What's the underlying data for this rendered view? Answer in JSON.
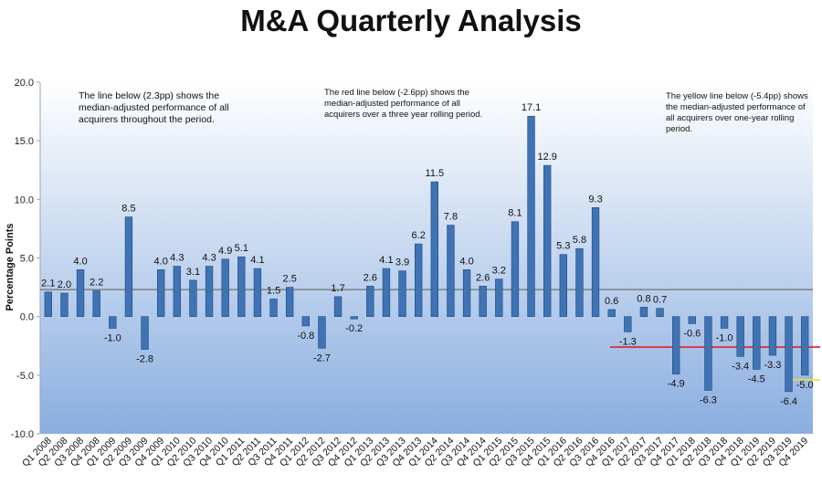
{
  "chart_data": {
    "type": "bar",
    "title": "M&A Quarterly Analysis",
    "xlabel": "",
    "ylabel": "Percentage Points",
    "ylim": [
      -10,
      20
    ],
    "yticks": [
      20.0,
      15.0,
      10.0,
      5.0,
      0.0,
      -5.0,
      -10.0
    ],
    "ytick_labels": [
      "20.0",
      "15.0",
      "10.0",
      "5.0",
      "0.0",
      "-5.0",
      "-10.0"
    ],
    "grid": false,
    "categories": [
      "Q1 2008",
      "Q2 2008",
      "Q3 2008",
      "Q4 2008",
      "Q1 2009",
      "Q2 2009",
      "Q3 2009",
      "Q4 2009",
      "Q1 2010",
      "Q2 2010",
      "Q3 2010",
      "Q4 2010",
      "Q1 2011",
      "Q2 2011",
      "Q3 2011",
      "Q4 2011",
      "Q1 2012",
      "Q2 2012",
      "Q3 2012",
      "Q4 2012",
      "Q1 2013",
      "Q2 2013",
      "Q3 2013",
      "Q4 2013",
      "Q1 2014",
      "Q2 2014",
      "Q3 2014",
      "Q4 2014",
      "Q1 2015",
      "Q2 2015",
      "Q3 2015",
      "Q4 2015",
      "Q1 2016",
      "Q2 2016",
      "Q3 2016",
      "Q4 2016",
      "Q1 2017",
      "Q2 2017",
      "Q3 2017",
      "Q4 2017",
      "Q1 2018",
      "Q2 2018",
      "Q3 2018",
      "Q4 2018",
      "Q1 2019",
      "Q2 2019",
      "Q3 2019",
      "Q4 2019"
    ],
    "values": [
      2.1,
      2.0,
      4.0,
      2.2,
      -1.0,
      8.5,
      -2.8,
      4.0,
      4.3,
      3.1,
      4.3,
      4.9,
      5.1,
      4.1,
      1.5,
      2.5,
      -0.8,
      -2.7,
      1.7,
      -0.2,
      2.6,
      4.1,
      3.9,
      6.2,
      11.5,
      7.8,
      4.0,
      2.6,
      3.2,
      8.1,
      17.1,
      12.9,
      5.3,
      5.8,
      9.3,
      0.6,
      -1.3,
      0.8,
      0.7,
      -4.9,
      -0.6,
      -6.3,
      -1.0,
      -3.4,
      -4.5,
      -3.3,
      -6.4,
      -5.0
    ],
    "value_labels": [
      "2.1",
      "2.0",
      "4.0",
      "2.2",
      "-1.0",
      "8.5",
      "-2.8",
      "4.0",
      "4.3",
      "3.1",
      "4.3",
      "4.9",
      "5.1",
      "4.1",
      "1.5",
      "2.5",
      "-0.8",
      "-2.7",
      "1.7",
      "-0.2",
      "2.6",
      "4.1",
      "3.9",
      "6.2",
      "11.5",
      "7.8",
      "4.0",
      "2.6",
      "3.2",
      "8.1",
      "17.1",
      "12.9",
      "5.3",
      "5.8",
      "9.3",
      "0.6",
      "-1.3",
      "0.8",
      "0.7",
      "-4.9",
      "-0.6",
      "-6.3",
      "-1.0",
      "-3.4",
      "-4.5",
      "-3.3",
      "-6.4",
      "-5.0"
    ],
    "reference_lines": [
      {
        "value": 2.3,
        "from": "Q1 2008",
        "to": "Q4 2019",
        "color": "#707070"
      },
      {
        "value": -2.6,
        "from": "Q4 2016",
        "to": "Q4 2019",
        "color": "#e0202a"
      },
      {
        "value": -5.4,
        "from": "Q3 2019",
        "to": "Q4 2019",
        "color": "#f0e020"
      }
    ],
    "annotations": [
      "The line below (2.3pp) shows the median-adjusted performance of all acquirers throughout the period.",
      "The red line below (-2.6pp) shows the median-adjusted performance of all acquirers over a three year rolling period.",
      "The yellow line below (-5.4pp) shows the median-adjusted performance of all acquirers over one-year rolling period."
    ],
    "colors": {
      "bar_fill": "#3f73b4",
      "bar_edge": "#1f4a80",
      "plot_bg_top": "#ffffff",
      "plot_bg_bottom": "#8aaee0"
    }
  }
}
